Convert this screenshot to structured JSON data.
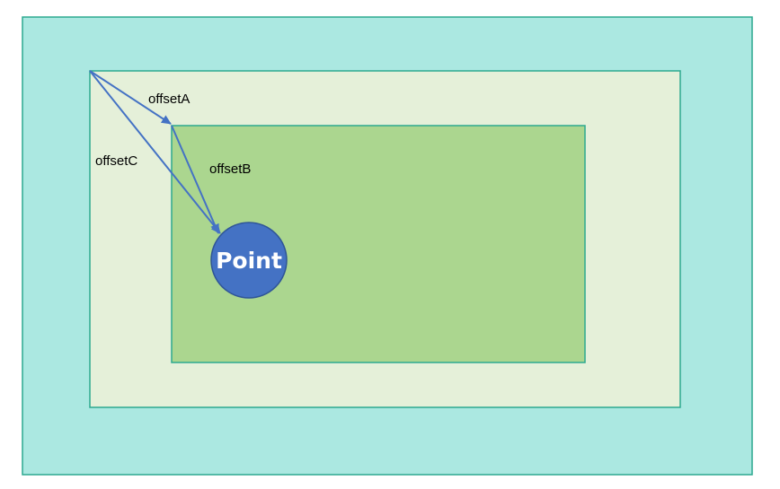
{
  "labels": {
    "offset_a": "offsetA",
    "offset_b": "offsetB",
    "offset_c": "offsetC",
    "point": "Point"
  },
  "colors": {
    "outer_fill": "#abe8e1",
    "middle_fill": "#e5f0d9",
    "inner_fill": "#abd68f",
    "border": "#2ca98f",
    "arrow": "#4472c4",
    "point_fill": "#4472c4",
    "point_border": "#2f5597"
  }
}
